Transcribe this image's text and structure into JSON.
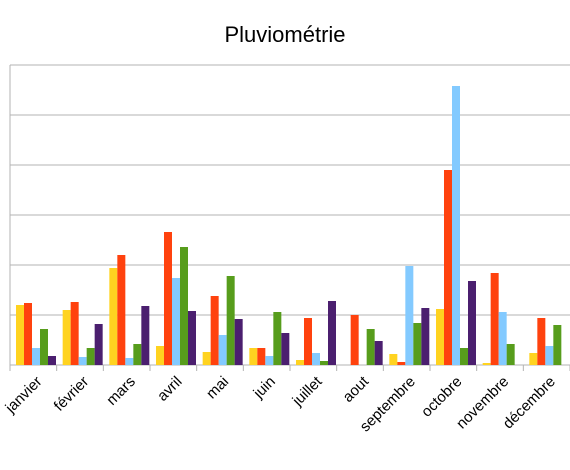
{
  "chart_data": {
    "type": "bar",
    "title": "Pluviométrie",
    "xlabel": "",
    "ylabel": "",
    "ylim": [
      0,
      300
    ],
    "grid": true,
    "categories": [
      "janvier",
      "février",
      "mars",
      "avril",
      "mai",
      "juin",
      "juillet",
      "aout",
      "septembre",
      "octobre",
      "novembre",
      "décembre"
    ],
    "series": [
      {
        "color": "#ffd320",
        "values": [
          60,
          55,
          97,
          19,
          13,
          17,
          5,
          0,
          11,
          56,
          2,
          12
        ]
      },
      {
        "color": "#ff420e",
        "values": [
          62,
          63,
          110,
          133,
          69,
          17,
          47,
          50,
          3,
          195,
          92,
          47
        ]
      },
      {
        "color": "#83caff",
        "values": [
          17,
          8,
          7,
          87,
          30,
          9,
          12,
          0,
          99,
          279,
          53,
          19
        ]
      },
      {
        "color": "#579d1c",
        "values": [
          36,
          17,
          21,
          118,
          89,
          53,
          4,
          36,
          42,
          17,
          21,
          40
        ]
      },
      {
        "color": "#4b1f6f",
        "values": [
          9,
          41,
          59,
          54,
          46,
          32,
          64,
          24,
          57,
          84,
          0,
          0
        ]
      }
    ]
  }
}
